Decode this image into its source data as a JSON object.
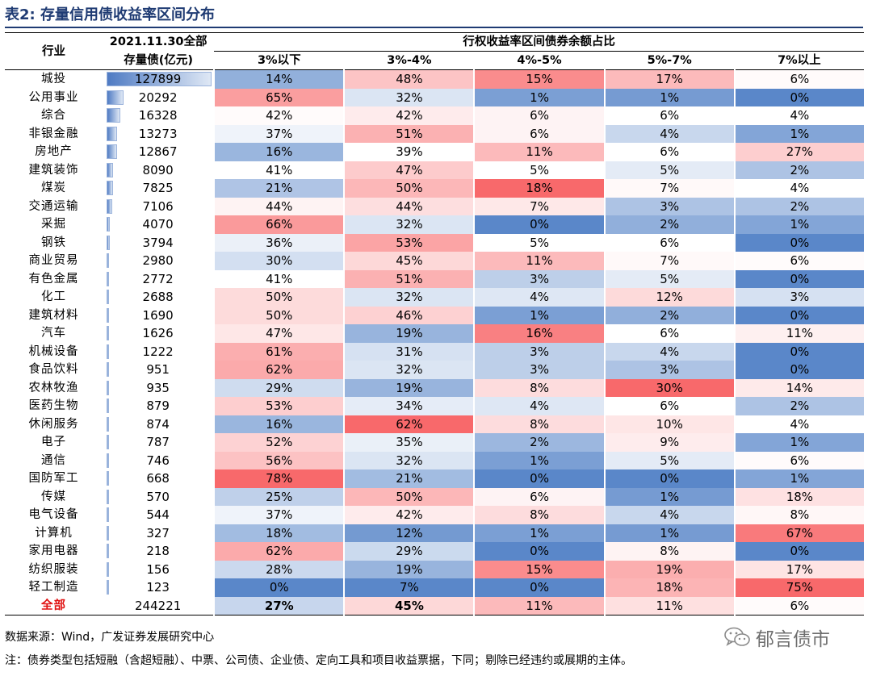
{
  "title": "表2: 存量信用债收益率区间分布",
  "header": {
    "industry": "行业",
    "amount_line1": "2021.11.30全部",
    "amount_line2": "存量债(亿元)",
    "group": "行权收益率区间债券余额占比",
    "buckets": [
      "3%以下",
      "3%-4%",
      "4%-5%",
      "5%-7%",
      "7%以上"
    ]
  },
  "colors": {
    "red": "#f86b6e",
    "blue": "#5a87c9",
    "white": "#ffffff",
    "bar": "#4f7bc3"
  },
  "rows": [
    {
      "industry": "城投",
      "amount": "127899",
      "v": [
        "14%",
        "48%",
        "15%",
        "17%",
        "6%"
      ]
    },
    {
      "industry": "公用事业",
      "amount": "20292",
      "v": [
        "65%",
        "32%",
        "1%",
        "1%",
        "0%"
      ]
    },
    {
      "industry": "综合",
      "amount": "16328",
      "v": [
        "42%",
        "42%",
        "6%",
        "6%",
        "4%"
      ]
    },
    {
      "industry": "非银金融",
      "amount": "13273",
      "v": [
        "37%",
        "51%",
        "6%",
        "4%",
        "1%"
      ]
    },
    {
      "industry": "房地产",
      "amount": "12867",
      "v": [
        "16%",
        "39%",
        "11%",
        "6%",
        "27%"
      ]
    },
    {
      "industry": "建筑装饰",
      "amount": "8090",
      "v": [
        "41%",
        "47%",
        "5%",
        "5%",
        "2%"
      ]
    },
    {
      "industry": "煤炭",
      "amount": "7825",
      "v": [
        "21%",
        "50%",
        "18%",
        "7%",
        "4%"
      ]
    },
    {
      "industry": "交通运输",
      "amount": "7106",
      "v": [
        "44%",
        "44%",
        "7%",
        "3%",
        "2%"
      ]
    },
    {
      "industry": "采掘",
      "amount": "4070",
      "v": [
        "66%",
        "32%",
        "0%",
        "2%",
        "1%"
      ]
    },
    {
      "industry": "钢铁",
      "amount": "3794",
      "v": [
        "36%",
        "53%",
        "5%",
        "6%",
        "0%"
      ]
    },
    {
      "industry": "商业贸易",
      "amount": "2980",
      "v": [
        "30%",
        "45%",
        "11%",
        "7%",
        "6%"
      ]
    },
    {
      "industry": "有色金属",
      "amount": "2772",
      "v": [
        "41%",
        "51%",
        "3%",
        "5%",
        "0%"
      ]
    },
    {
      "industry": "化工",
      "amount": "2688",
      "v": [
        "50%",
        "32%",
        "4%",
        "12%",
        "3%"
      ]
    },
    {
      "industry": "建筑材料",
      "amount": "1690",
      "v": [
        "50%",
        "46%",
        "1%",
        "2%",
        "0%"
      ]
    },
    {
      "industry": "汽车",
      "amount": "1626",
      "v": [
        "47%",
        "19%",
        "16%",
        "6%",
        "11%"
      ]
    },
    {
      "industry": "机械设备",
      "amount": "1222",
      "v": [
        "61%",
        "31%",
        "3%",
        "4%",
        "0%"
      ]
    },
    {
      "industry": "食品饮料",
      "amount": "951",
      "v": [
        "62%",
        "32%",
        "3%",
        "3%",
        "0%"
      ]
    },
    {
      "industry": "农林牧渔",
      "amount": "935",
      "v": [
        "29%",
        "19%",
        "8%",
        "30%",
        "14%"
      ]
    },
    {
      "industry": "医药生物",
      "amount": "879",
      "v": [
        "53%",
        "34%",
        "4%",
        "6%",
        "2%"
      ]
    },
    {
      "industry": "休闲服务",
      "amount": "874",
      "v": [
        "16%",
        "62%",
        "8%",
        "10%",
        "4%"
      ]
    },
    {
      "industry": "电子",
      "amount": "787",
      "v": [
        "52%",
        "35%",
        "2%",
        "9%",
        "1%"
      ]
    },
    {
      "industry": "通信",
      "amount": "746",
      "v": [
        "56%",
        "32%",
        "1%",
        "5%",
        "6%"
      ]
    },
    {
      "industry": "国防军工",
      "amount": "668",
      "v": [
        "78%",
        "21%",
        "0%",
        "0%",
        "1%"
      ]
    },
    {
      "industry": "传媒",
      "amount": "570",
      "v": [
        "25%",
        "50%",
        "6%",
        "1%",
        "18%"
      ]
    },
    {
      "industry": "电气设备",
      "amount": "544",
      "v": [
        "37%",
        "42%",
        "8%",
        "4%",
        "8%"
      ]
    },
    {
      "industry": "计算机",
      "amount": "327",
      "v": [
        "18%",
        "12%",
        "1%",
        "1%",
        "67%"
      ]
    },
    {
      "industry": "家用电器",
      "amount": "218",
      "v": [
        "62%",
        "29%",
        "0%",
        "8%",
        "0%"
      ]
    },
    {
      "industry": "纺织服装",
      "amount": "156",
      "v": [
        "28%",
        "19%",
        "15%",
        "19%",
        "17%"
      ]
    },
    {
      "industry": "轻工制造",
      "amount": "123",
      "v": [
        "0%",
        "7%",
        "0%",
        "18%",
        "75%"
      ]
    }
  ],
  "total": {
    "industry": "全部",
    "amount": "244221",
    "v": [
      "27%",
      "45%",
      "11%",
      "11%",
      "6%"
    ]
  },
  "notes": {
    "source": "数据来源：Wind，广发证券发展研究中心",
    "note": "注：债券类型包括短融（含超短融）、中票、公司债、企业债、定向工具和项目收益票据，下同；剔除已经违约或展期的主体。"
  },
  "watermark": {
    "text": "郁言债市",
    "icon": "wechat-icon"
  }
}
